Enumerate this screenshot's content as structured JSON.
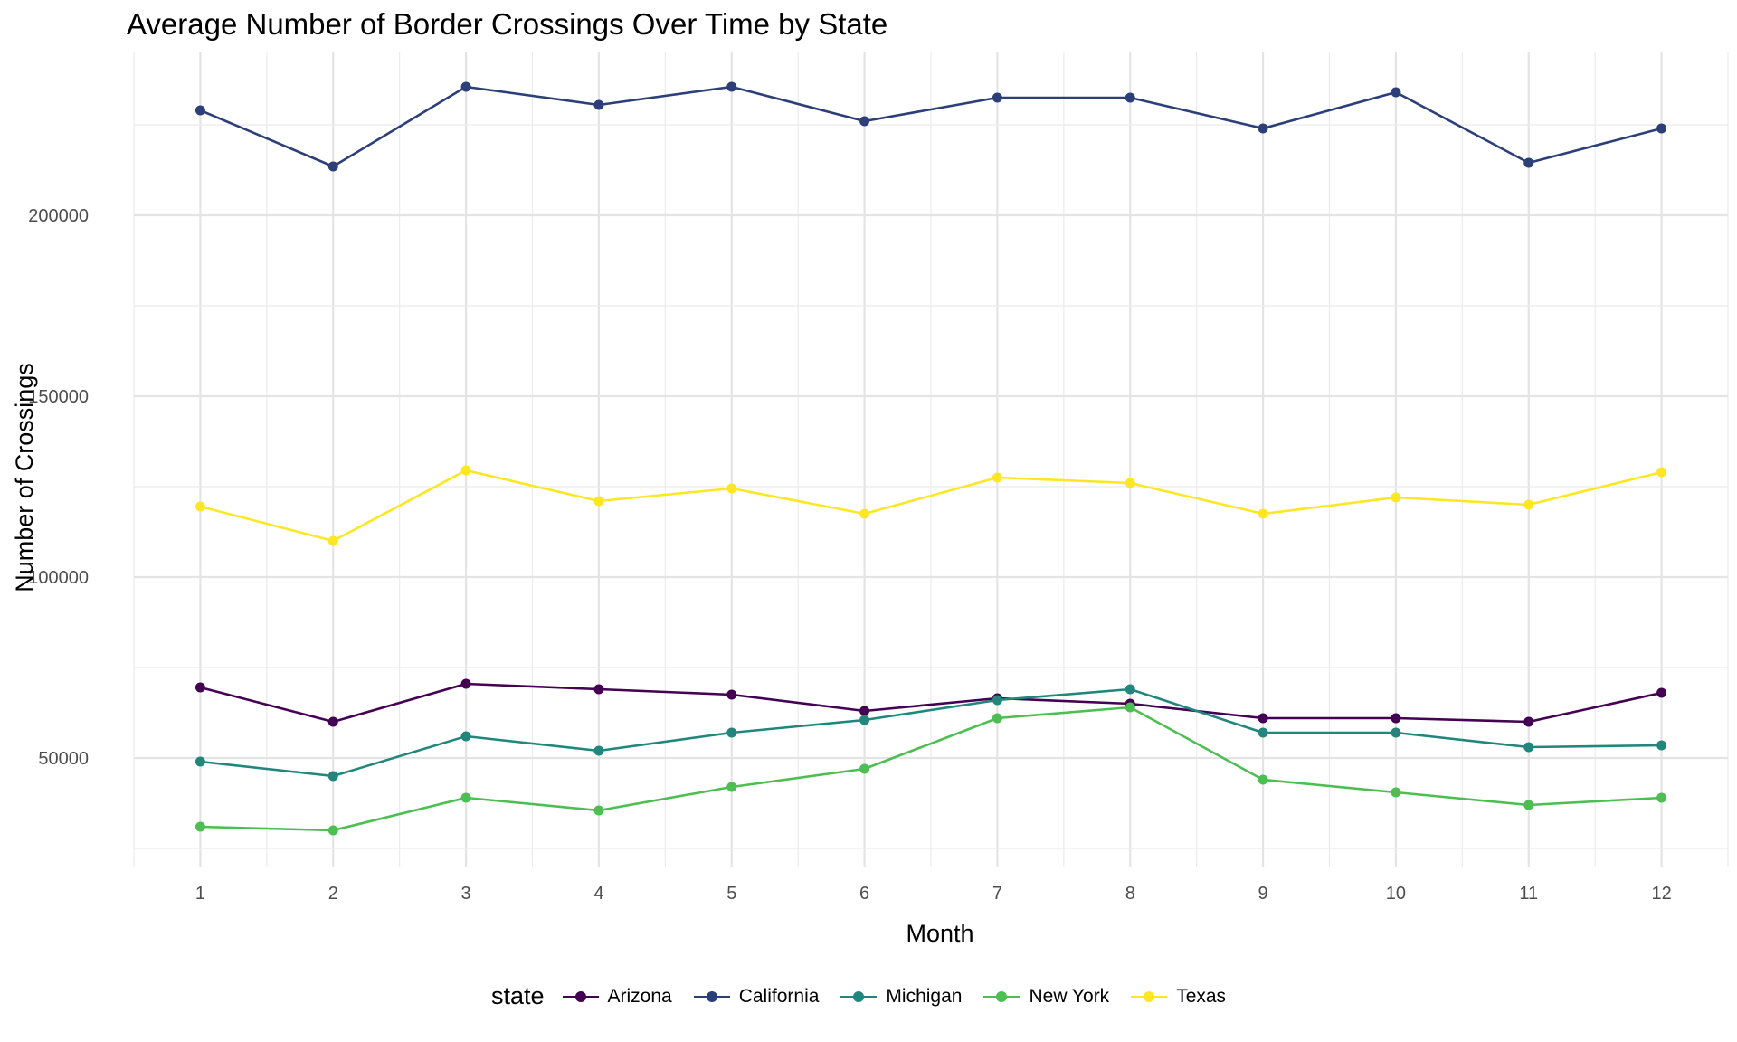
{
  "chart_data": {
    "type": "line",
    "title": "Average Number of Border Crossings Over Time by State",
    "xlabel": "Month",
    "ylabel": "Number of Crossings",
    "x": [
      1,
      2,
      3,
      4,
      5,
      6,
      7,
      8,
      9,
      10,
      11,
      12
    ],
    "x_ticks": [
      "1",
      "2",
      "3",
      "4",
      "5",
      "6",
      "7",
      "8",
      "9",
      "10",
      "11",
      "12"
    ],
    "xlim": [
      0.5,
      12.5
    ],
    "y_ticks": [
      "50000",
      "100000",
      "150000",
      "200000"
    ],
    "ylim": [
      20000,
      245000
    ],
    "grid": true,
    "legend": {
      "title": "state",
      "placement": "bottom"
    },
    "series": [
      {
        "name": "Arizona",
        "color": "#440154",
        "values": [
          69500,
          60000,
          70500,
          69000,
          67500,
          63000,
          66500,
          65000,
          61000,
          61000,
          60000,
          68000
        ]
      },
      {
        "name": "California",
        "color": "#2d3f79",
        "values": [
          229000,
          213500,
          235500,
          230500,
          235500,
          226000,
          232500,
          232500,
          224000,
          234000,
          214500,
          224000
        ]
      },
      {
        "name": "Michigan",
        "color": "#21877c",
        "values": [
          49000,
          45000,
          56000,
          52000,
          57000,
          60500,
          66000,
          69000,
          57000,
          57000,
          53000,
          53500
        ]
      },
      {
        "name": "New York",
        "color": "#4dbf52",
        "values": [
          31000,
          30000,
          39000,
          35500,
          42000,
          47000,
          61000,
          64000,
          44000,
          40500,
          37000,
          39000
        ]
      },
      {
        "name": "Texas",
        "color": "#fde725",
        "values": [
          119500,
          110000,
          129500,
          121000,
          124500,
          117500,
          127500,
          126000,
          117500,
          122000,
          120000,
          129000
        ]
      }
    ]
  }
}
